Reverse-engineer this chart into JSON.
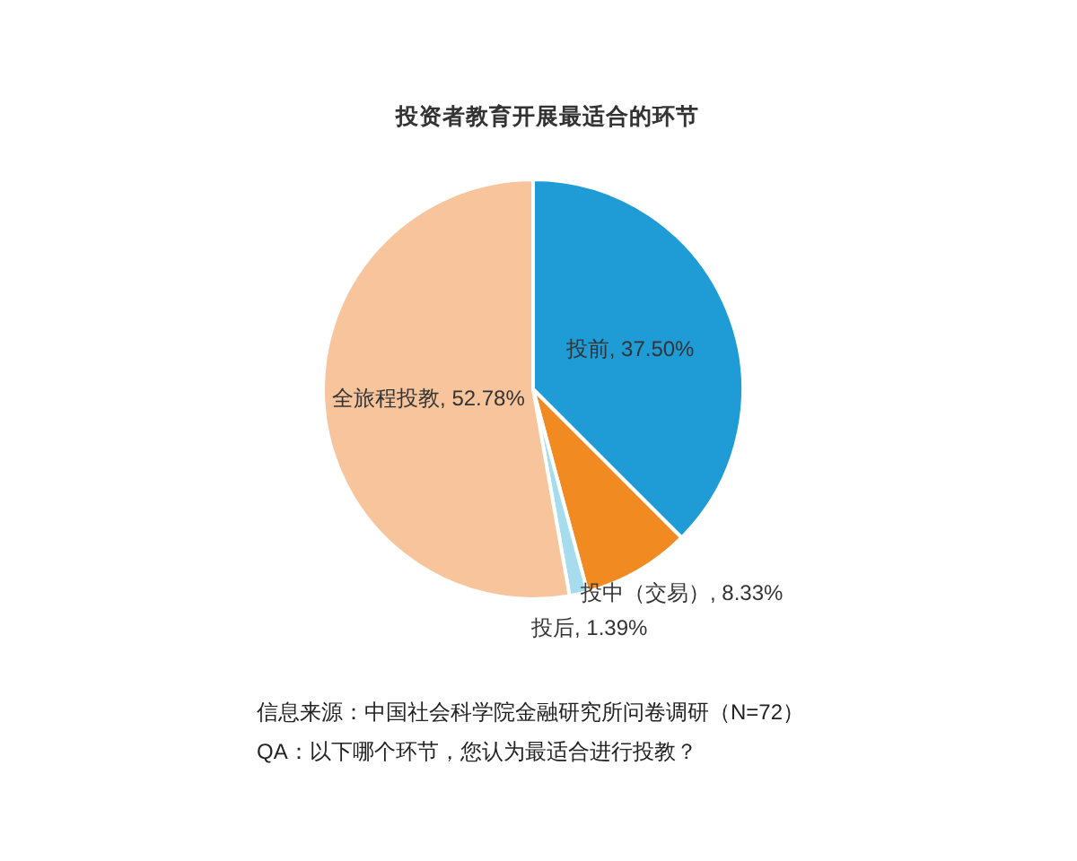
{
  "chart_data": {
    "type": "pie",
    "title": "投资者教育开展最适合的环节",
    "categories": [
      "投前",
      "投中（交易）",
      "投后",
      "全旅程投教"
    ],
    "values": [
      37.5,
      8.33,
      1.39,
      52.78
    ],
    "value_labels": [
      "37.50%",
      "8.33%",
      "1.39%",
      "52.78%"
    ],
    "colors": [
      "#1f9bd6",
      "#f28a22",
      "#a6dcee",
      "#f8c49c"
    ],
    "annotations": [
      "信息来源：中国社会科学院金融研究所问卷调研（N=72）",
      "QA：以下哪个环节，您认为最适合进行投教？"
    ]
  }
}
